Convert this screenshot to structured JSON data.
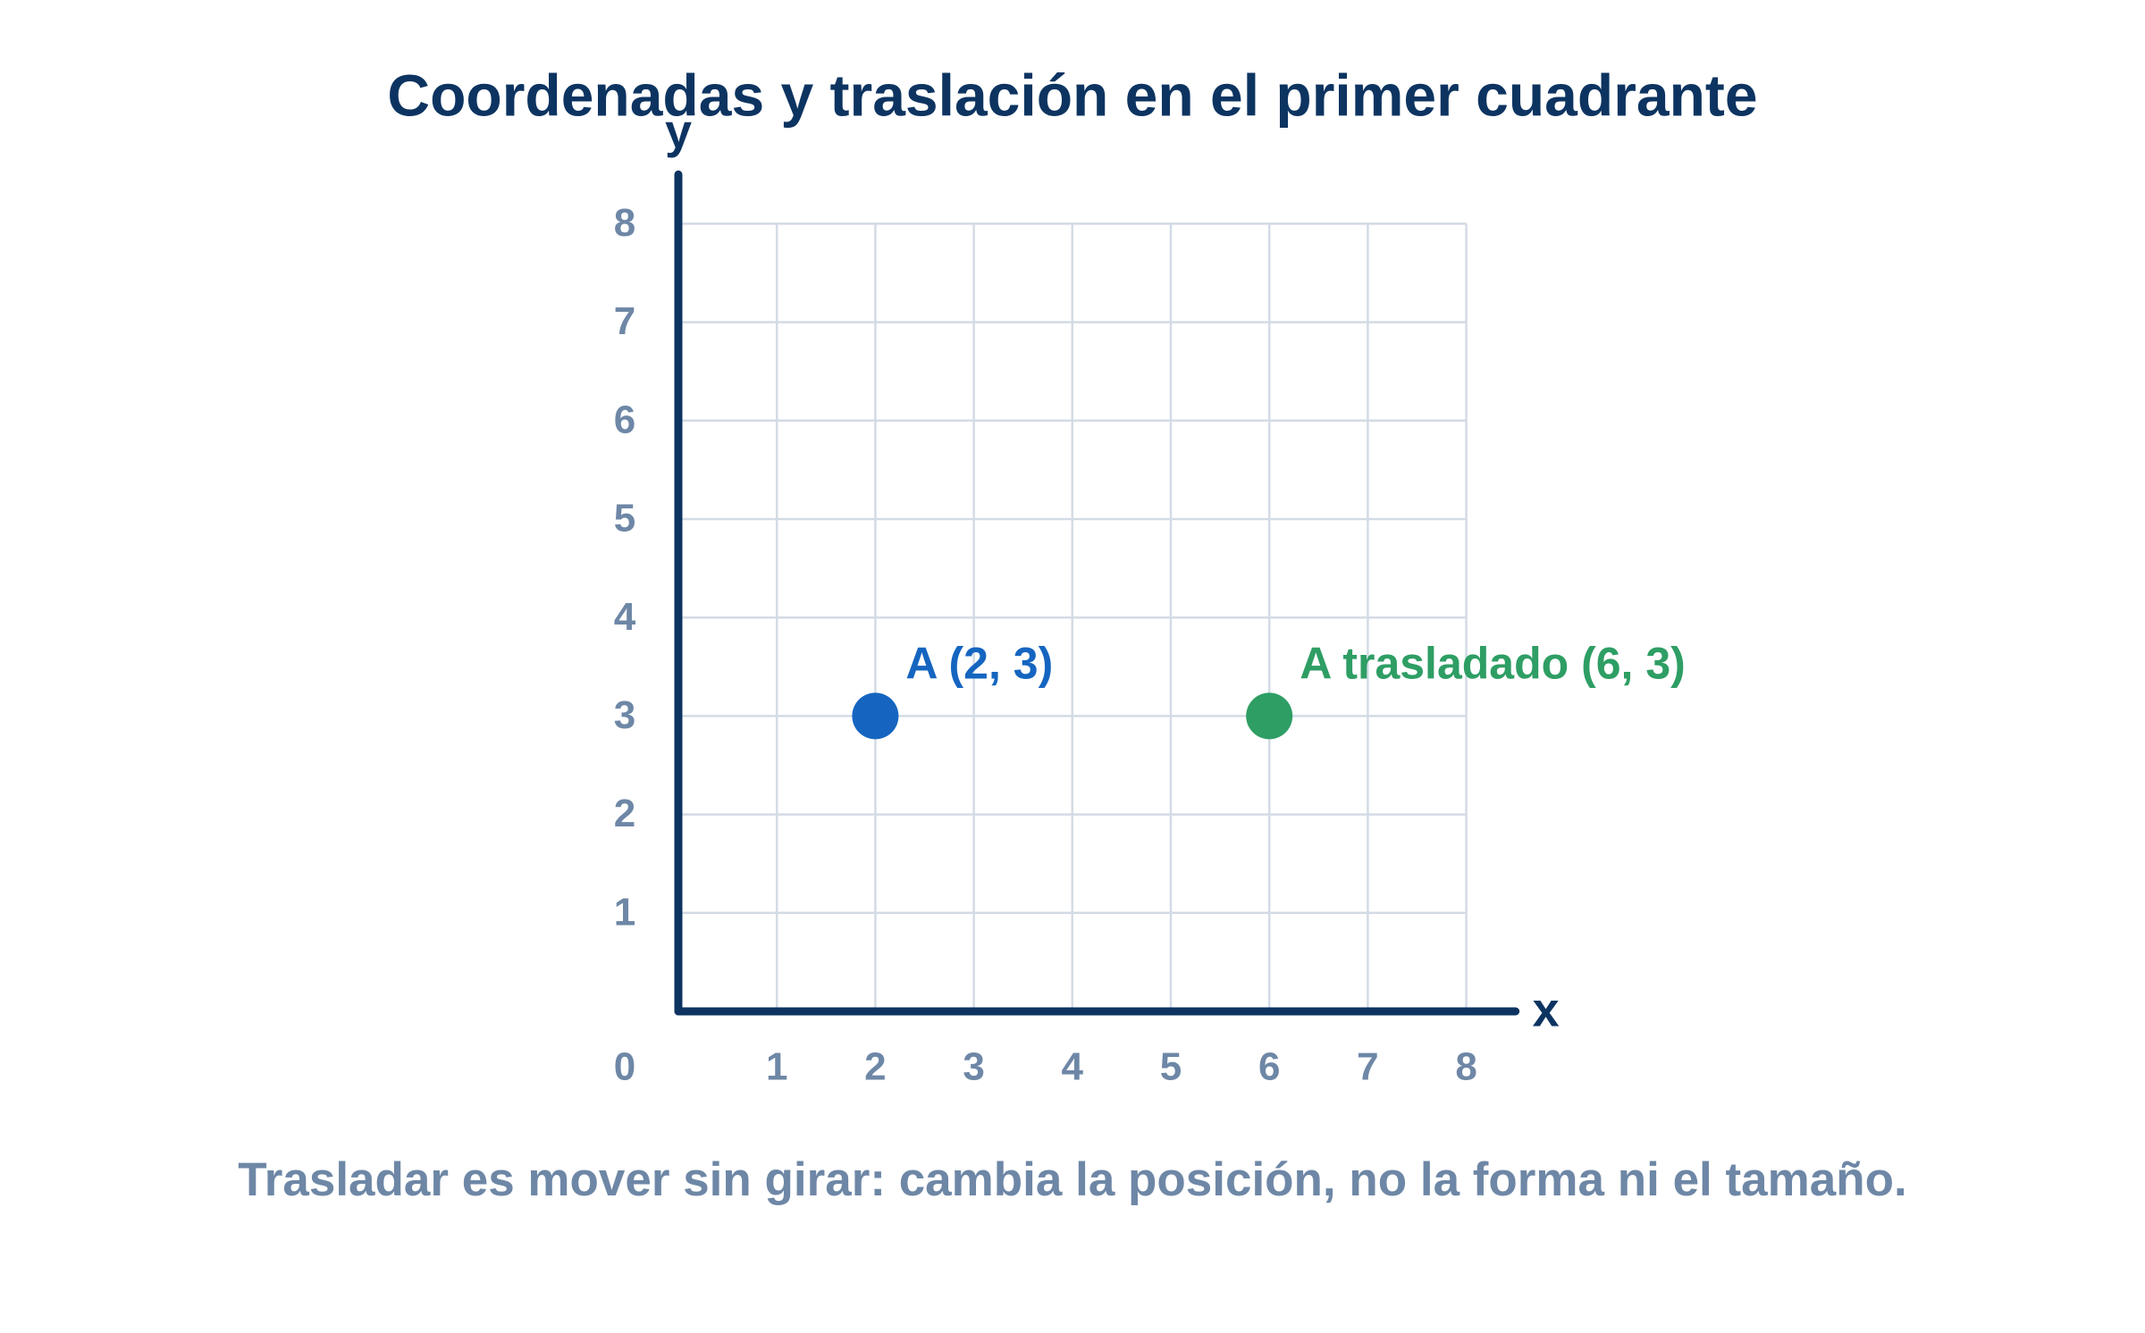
{
  "chart_data": {
    "type": "scatter",
    "title": "Coordenadas y traslación en el primer cuadrante",
    "caption": "Trasladar es mover sin girar: cambia la posición, no la forma ni el tamaño.",
    "x_label": "x",
    "y_label": "y",
    "xlim": [
      0,
      8.5
    ],
    "ylim": [
      0,
      8.5
    ],
    "xticks": [
      0,
      1,
      2,
      3,
      4,
      5,
      6,
      7,
      8
    ],
    "yticks": [
      1,
      2,
      3,
      4,
      5,
      6,
      7,
      8
    ],
    "grid": true,
    "points": [
      {
        "label": "A (2, 3)",
        "x": 2,
        "y": 3,
        "color": "#1565c0"
      },
      {
        "label": "A trasladado (6, 3)",
        "x": 6,
        "y": 3,
        "color": "#2e9e64"
      }
    ]
  }
}
